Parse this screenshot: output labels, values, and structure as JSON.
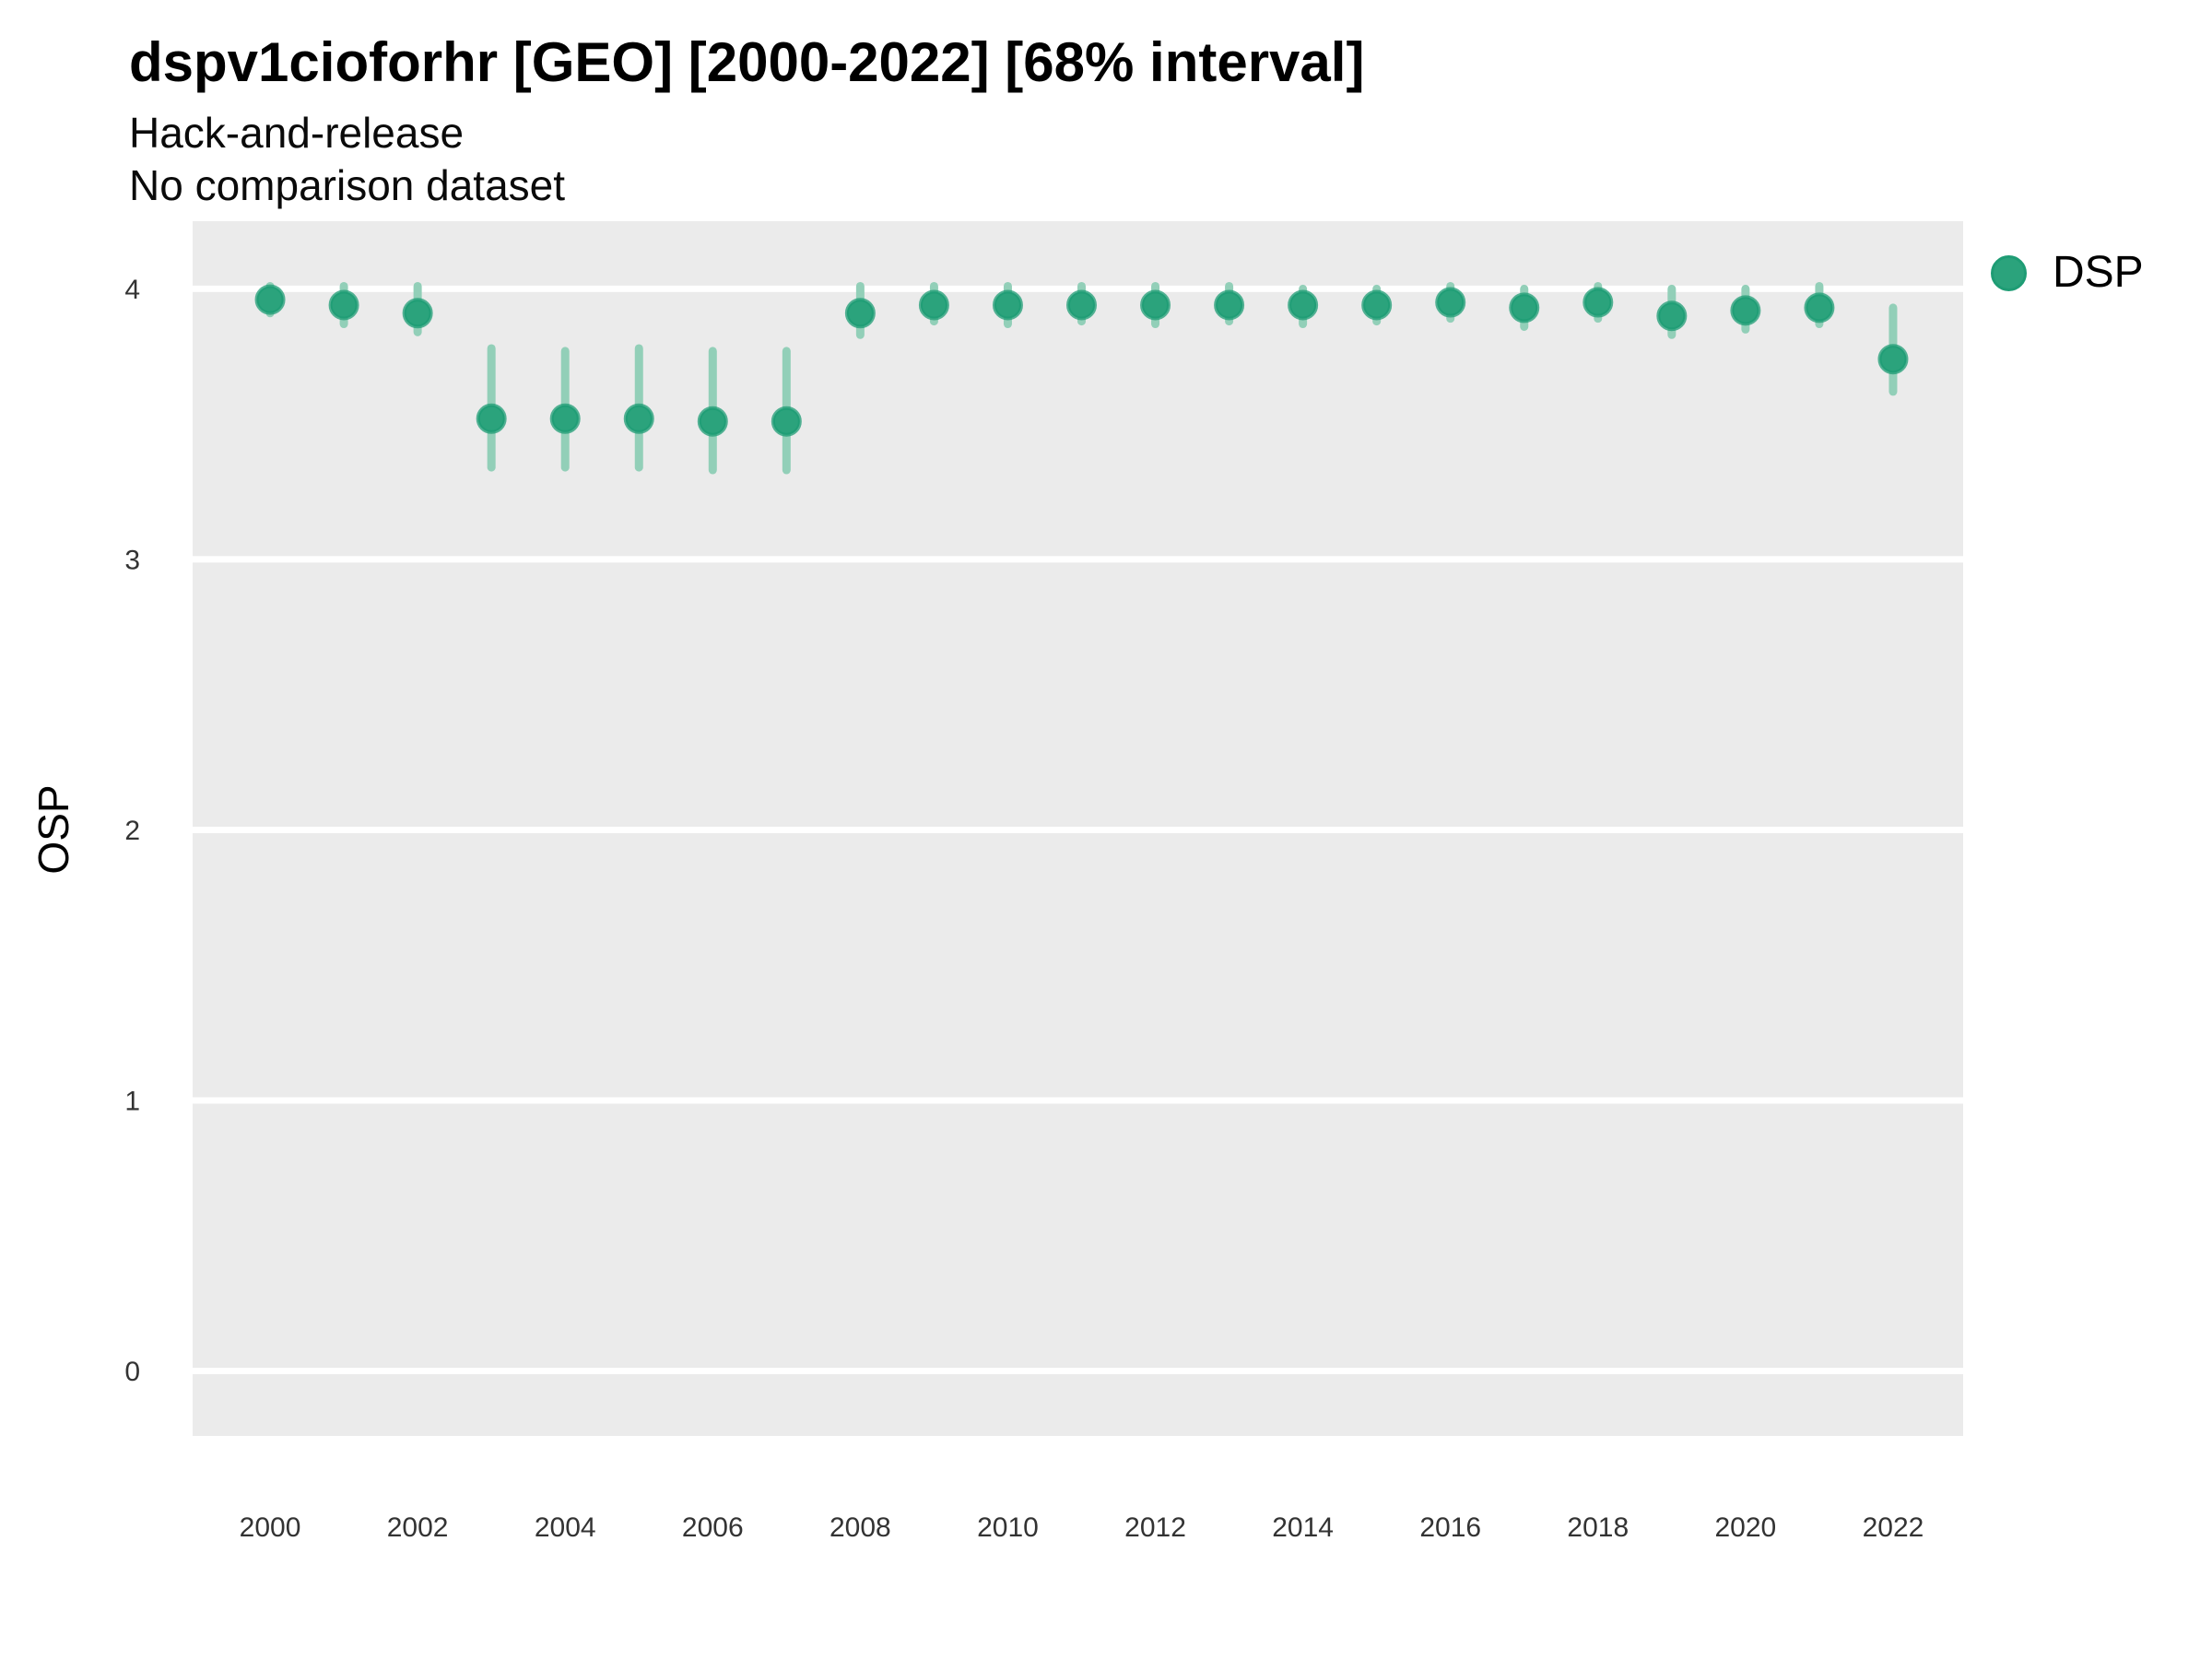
{
  "header": {
    "title": "dspv1cioforhr [GEO] [2000-2022] [68% interval]",
    "subtitle1": "Hack-and-release",
    "subtitle2": "No comparison dataset"
  },
  "y_axis": {
    "label": "OSP"
  },
  "legend": {
    "label": "DSP"
  },
  "colors": {
    "panel_background": "#EBEBEB",
    "gridline": "#FFFFFF",
    "point_fill": "#2BA37C",
    "point_stroke": "#1E9C74",
    "interval_bar": "#92CFB8",
    "axis_text": "#333333",
    "legend_dot": "#2BA37C",
    "legend_dot_stroke": "#1E9C74"
  },
  "chart_data": {
    "type": "pointrange",
    "title": "dspv1cioforhr [GEO] [2000-2022] [68% interval]",
    "subtitle": [
      "Hack-and-release",
      "No comparison dataset"
    ],
    "xlabel": "",
    "ylabel": "OSP",
    "interval_label": "68% interval",
    "legend_position": "right",
    "grid": "horizontal-major-only",
    "xlim": [
      1998.95,
      2022.95
    ],
    "ylim": [
      -0.24,
      4.25
    ],
    "x_ticks": [
      2000,
      2002,
      2004,
      2006,
      2008,
      2010,
      2012,
      2014,
      2016,
      2018,
      2020,
      2022
    ],
    "y_ticks": [
      0,
      1,
      2,
      3,
      4
    ],
    "series": [
      {
        "name": "DSP",
        "points": [
          {
            "x": 2000,
            "y": 3.96,
            "lo": 3.91,
            "hi": 4.01
          },
          {
            "x": 2001,
            "y": 3.94,
            "lo": 3.87,
            "hi": 4.01
          },
          {
            "x": 2002,
            "y": 3.91,
            "lo": 3.84,
            "hi": 4.01
          },
          {
            "x": 2003,
            "y": 3.52,
            "lo": 3.34,
            "hi": 3.78
          },
          {
            "x": 2004,
            "y": 3.52,
            "lo": 3.34,
            "hi": 3.77
          },
          {
            "x": 2005,
            "y": 3.52,
            "lo": 3.34,
            "hi": 3.78
          },
          {
            "x": 2006,
            "y": 3.51,
            "lo": 3.33,
            "hi": 3.77
          },
          {
            "x": 2007,
            "y": 3.51,
            "lo": 3.33,
            "hi": 3.77
          },
          {
            "x": 2008,
            "y": 3.91,
            "lo": 3.83,
            "hi": 4.01
          },
          {
            "x": 2009,
            "y": 3.94,
            "lo": 3.88,
            "hi": 4.01
          },
          {
            "x": 2010,
            "y": 3.94,
            "lo": 3.87,
            "hi": 4.01
          },
          {
            "x": 2011,
            "y": 3.94,
            "lo": 3.88,
            "hi": 4.01
          },
          {
            "x": 2012,
            "y": 3.94,
            "lo": 3.87,
            "hi": 4.01
          },
          {
            "x": 2013,
            "y": 3.94,
            "lo": 3.88,
            "hi": 4.01
          },
          {
            "x": 2014,
            "y": 3.94,
            "lo": 3.87,
            "hi": 4.0
          },
          {
            "x": 2015,
            "y": 3.94,
            "lo": 3.88,
            "hi": 4.0
          },
          {
            "x": 2016,
            "y": 3.95,
            "lo": 3.89,
            "hi": 4.01
          },
          {
            "x": 2017,
            "y": 3.93,
            "lo": 3.86,
            "hi": 4.0
          },
          {
            "x": 2018,
            "y": 3.95,
            "lo": 3.89,
            "hi": 4.01
          },
          {
            "x": 2019,
            "y": 3.9,
            "lo": 3.83,
            "hi": 4.0
          },
          {
            "x": 2020,
            "y": 3.92,
            "lo": 3.85,
            "hi": 4.0
          },
          {
            "x": 2021,
            "y": 3.93,
            "lo": 3.87,
            "hi": 4.01
          },
          {
            "x": 2022,
            "y": 3.74,
            "lo": 3.62,
            "hi": 3.93
          }
        ]
      }
    ]
  }
}
